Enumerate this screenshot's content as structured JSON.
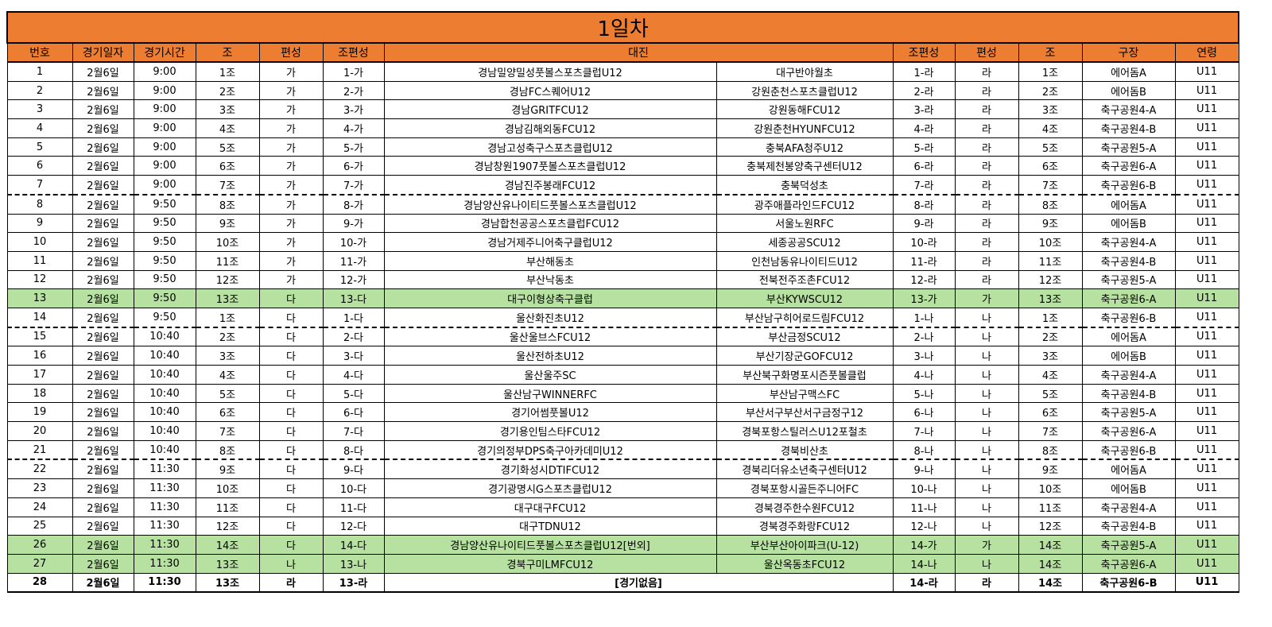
{
  "title": "1일차",
  "headers": [
    "번호",
    "경기일자",
    "경기시간",
    "조",
    "편성",
    "조편성",
    "대진",
    "조편성",
    "편성",
    "조",
    "구장",
    "연령"
  ],
  "colors": {
    "header": "#ed7d31",
    "highlight": "#b7e1a1"
  },
  "rows": [
    [
      "1",
      "2월6일",
      "9:00",
      "1조",
      "가",
      "1-가",
      "경남밀양밀성풋볼스포츠클럽U12",
      "대구반야월초",
      "1-라",
      "라",
      "1조",
      "에어돔A",
      "U11"
    ],
    [
      "2",
      "2월6일",
      "9:00",
      "2조",
      "가",
      "2-가",
      "경남FC스퀘어U12",
      "강원춘천스포츠클럽U12",
      "2-라",
      "라",
      "2조",
      "에어돔B",
      "U11"
    ],
    [
      "3",
      "2월6일",
      "9:00",
      "3조",
      "가",
      "3-가",
      "경남GRITFCU12",
      "강원동해FCU12",
      "3-라",
      "라",
      "3조",
      "축구공원4-A",
      "U11"
    ],
    [
      "4",
      "2월6일",
      "9:00",
      "4조",
      "가",
      "4-가",
      "경남김해외동FCU12",
      "강원춘천HYUNFCU12",
      "4-라",
      "라",
      "4조",
      "축구공원4-B",
      "U11"
    ],
    [
      "5",
      "2월6일",
      "9:00",
      "5조",
      "가",
      "5-가",
      "경남고성축구스포츠클럽U12",
      "충북AFA청주U12",
      "5-라",
      "라",
      "5조",
      "축구공원5-A",
      "U11"
    ],
    [
      "6",
      "2월6일",
      "9:00",
      "6조",
      "가",
      "6-가",
      "경남창원1907풋볼스포츠클럽U12",
      "충북제천봉양축구센터U12",
      "6-라",
      "라",
      "6조",
      "축구공원6-A",
      "U11"
    ],
    [
      "7",
      "2월6일",
      "9:00",
      "7조",
      "가",
      "7-가",
      "경남진주봉래FCU12",
      "충북덕성초",
      "7-라",
      "라",
      "7조",
      "축구공원6-B",
      "U11"
    ],
    [
      "8",
      "2월6일",
      "9:50",
      "8조",
      "가",
      "8-가",
      "경남양산유나이티드풋볼스포츠클럽U12",
      "광주애플라인드FCU12",
      "8-라",
      "라",
      "8조",
      "에어돔A",
      "U11"
    ],
    [
      "9",
      "2월6일",
      "9:50",
      "9조",
      "가",
      "9-가",
      "경남합천공공스포츠클럽FCU12",
      "서울노원RFC",
      "9-라",
      "라",
      "9조",
      "에어돔B",
      "U11"
    ],
    [
      "10",
      "2월6일",
      "9:50",
      "10조",
      "가",
      "10-가",
      "경남거제주니어축구클럽U12",
      "세종공공SCU12",
      "10-라",
      "라",
      "10조",
      "축구공원4-A",
      "U11"
    ],
    [
      "11",
      "2월6일",
      "9:50",
      "11조",
      "가",
      "11-가",
      "부산해동초",
      "인천남동유나이티드U12",
      "11-라",
      "라",
      "11조",
      "축구공원4-B",
      "U11"
    ],
    [
      "12",
      "2월6일",
      "9:50",
      "12조",
      "가",
      "12-가",
      "부산낙동초",
      "전북전주조촌FCU12",
      "12-라",
      "라",
      "12조",
      "축구공원5-A",
      "U11"
    ],
    [
      "13",
      "2월6일",
      "9:50",
      "13조",
      "다",
      "13-다",
      "대구이형상축구클럽",
      "부산KYWSCU12",
      "13-가",
      "가",
      "13조",
      "축구공원6-A",
      "U11"
    ],
    [
      "14",
      "2월6일",
      "9:50",
      "1조",
      "다",
      "1-다",
      "울산화진초U12",
      "부산남구히어로드림FCU12",
      "1-나",
      "나",
      "1조",
      "축구공원6-B",
      "U11"
    ],
    [
      "15",
      "2월6일",
      "10:40",
      "2조",
      "다",
      "2-다",
      "울산울브스FCU12",
      "부산금정SCU12",
      "2-나",
      "나",
      "2조",
      "에어돔A",
      "U11"
    ],
    [
      "16",
      "2월6일",
      "10:40",
      "3조",
      "다",
      "3-다",
      "울산전하초U12",
      "부산기장군GOFCU12",
      "3-나",
      "나",
      "3조",
      "에어돔B",
      "U11"
    ],
    [
      "17",
      "2월6일",
      "10:40",
      "4조",
      "다",
      "4-다",
      "울산울주SC",
      "부산북구화명포시즌풋볼클럽",
      "4-나",
      "나",
      "4조",
      "축구공원4-A",
      "U11"
    ],
    [
      "18",
      "2월6일",
      "10:40",
      "5조",
      "다",
      "5-다",
      "울산남구WINNERFC",
      "부산남구맥스FC",
      "5-나",
      "나",
      "5조",
      "축구공원4-B",
      "U11"
    ],
    [
      "19",
      "2월6일",
      "10:40",
      "6조",
      "다",
      "6-다",
      "경기어썸풋볼U12",
      "부산서구부산서구금정구12",
      "6-나",
      "나",
      "6조",
      "축구공원5-A",
      "U11"
    ],
    [
      "20",
      "2월6일",
      "10:40",
      "7조",
      "다",
      "7-다",
      "경기용인팀스타FCU12",
      "경북포항스틸러스U12포철초",
      "7-나",
      "나",
      "7조",
      "축구공원6-A",
      "U11"
    ],
    [
      "21",
      "2월6일",
      "10:40",
      "8조",
      "다",
      "8-다",
      "경기의정부DPS축구아카데미U12",
      "경북비산초",
      "8-나",
      "나",
      "8조",
      "축구공원6-B",
      "U11"
    ],
    [
      "22",
      "2월6일",
      "11:30",
      "9조",
      "다",
      "9-다",
      "경기화성시DTIFCU12",
      "경북리더유소년축구센터U12",
      "9-나",
      "나",
      "9조",
      "에어돔A",
      "U11"
    ],
    [
      "23",
      "2월6일",
      "11:30",
      "10조",
      "다",
      "10-다",
      "경기광명시G스포츠클럽U12",
      "경북포항시골든주니어FC",
      "10-나",
      "나",
      "10조",
      "에어돔B",
      "U11"
    ],
    [
      "24",
      "2월6일",
      "11:30",
      "11조",
      "다",
      "11-다",
      "대구대구FCU12",
      "경북경주한수원FCU12",
      "11-나",
      "나",
      "11조",
      "축구공원4-A",
      "U11"
    ],
    [
      "25",
      "2월6일",
      "11:30",
      "12조",
      "다",
      "12-다",
      "대구TDNU12",
      "경북경주화랑FCU12",
      "12-나",
      "나",
      "12조",
      "축구공원4-B",
      "U11"
    ],
    [
      "26",
      "2월6일",
      "11:30",
      "14조",
      "다",
      "14-다",
      "경남양산유나이티드풋볼스포츠클럽U12[번외]",
      "부산부산아이파크(U-12)",
      "14-가",
      "가",
      "14조",
      "축구공원5-A",
      "U11"
    ],
    [
      "27",
      "2월6일",
      "11:30",
      "13조",
      "나",
      "13-나",
      "경북구미LMFCU12",
      "울산옥동초FCU12",
      "14-나",
      "나",
      "14조",
      "축구공원6-A",
      "U11"
    ],
    [
      "28",
      "2월6일",
      "11:30",
      "13조",
      "라",
      "13-라",
      "[경기없음]",
      null,
      "14-라",
      "라",
      "14조",
      "축구공원6-B",
      "U11"
    ]
  ],
  "highlighted_rows": [
    "13",
    "26",
    "27"
  ],
  "dashed_after_rows": [
    "7",
    "14",
    "21"
  ]
}
